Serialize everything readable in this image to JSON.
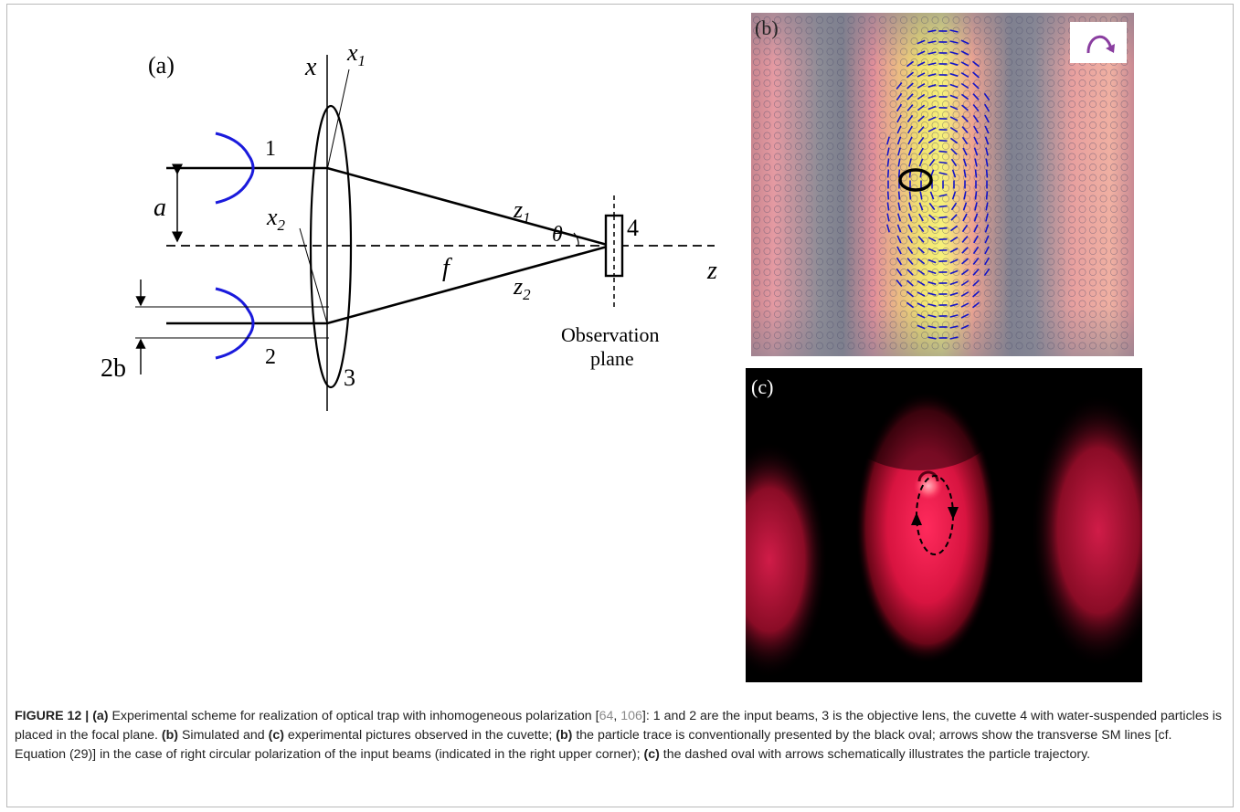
{
  "panel_a": {
    "label": "(a)",
    "axis_x": "x",
    "x1": "x",
    "x1_sub": "1",
    "x2": "x",
    "x2_sub": "2",
    "beam1": "1",
    "beam2": "2",
    "lens": "3",
    "cuvette": "4",
    "a": "a",
    "theta": "θ",
    "z1": "z",
    "z1_sub": "1",
    "z2": "z",
    "z2_sub": "2",
    "f": "f",
    "z": "z",
    "two_b": "2b",
    "observation": "Observation",
    "plane": "plane"
  },
  "panel_b": {
    "label": "(b)"
  },
  "panel_c": {
    "label": "(c)"
  },
  "caption": {
    "figure_label": "FIGURE 12 | ",
    "a_tag": "(a)",
    "t1": " Experimental scheme for realization of optical trap with inhomogeneous polarization [",
    "ref1": "64",
    "sep": ", ",
    "ref2": "106",
    "t2": "]: 1 and 2 are the input beams, 3 is the objective lens, the cuvette 4 with water-suspended particles is placed in the focal plane. ",
    "b_tag": "(b)",
    "t3": " Simulated and ",
    "c_tag": "(c)",
    "t4": " experimental pictures observed in the cuvette; ",
    "b_tag2": "(b)",
    "t5": " the particle trace is conventionally presented by the black oval; arrows show the transverse SM lines [cf. Equation (29)] in the case of right circular polarization of the input beams (indicated in the right upper corner); ",
    "c_tag2": "(c)",
    "t6": " the dashed oval with arrows schematically illustrates the particle trajectory."
  }
}
